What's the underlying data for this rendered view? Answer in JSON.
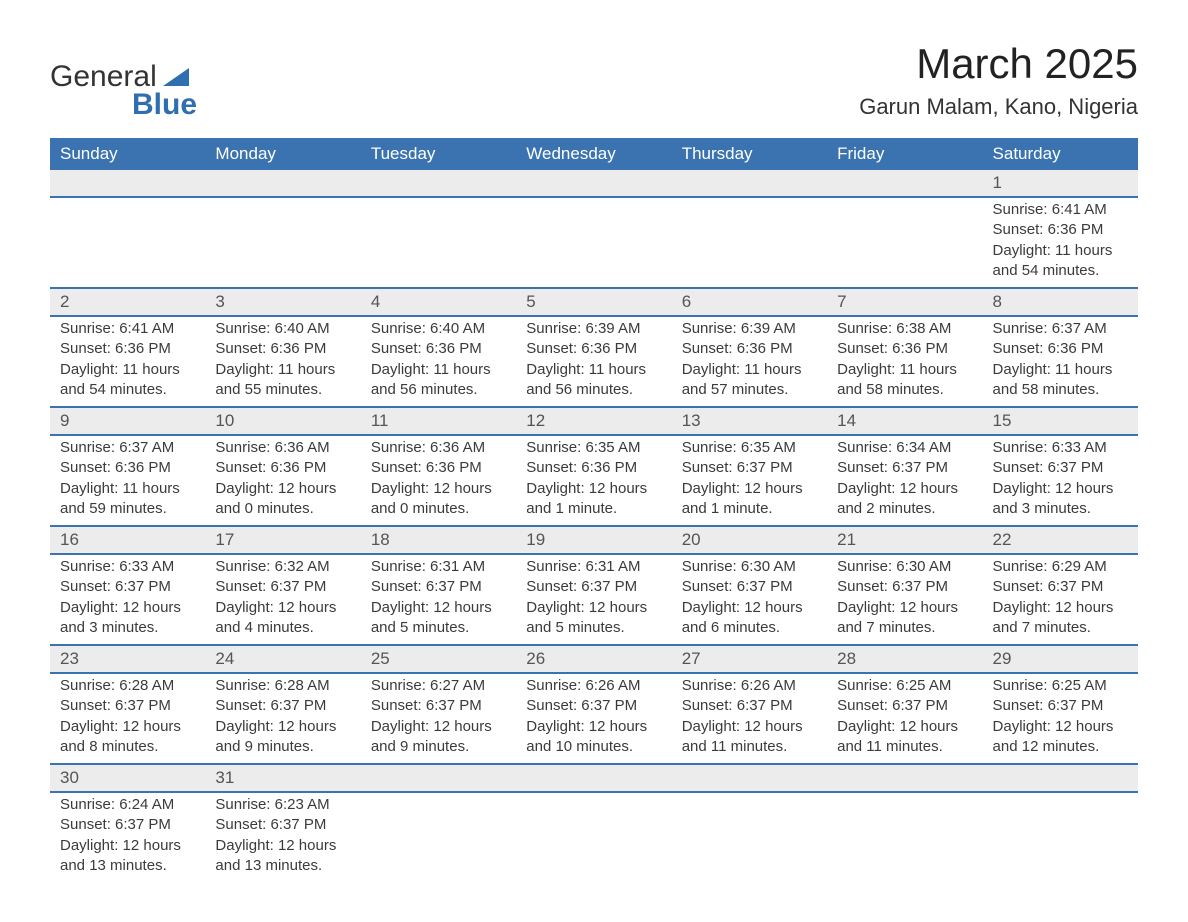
{
  "logo": {
    "text1": "General",
    "text2": "Blue"
  },
  "title": "March 2025",
  "location": "Garun Malam, Kano, Nigeria",
  "colors": {
    "header_bg": "#3a73af",
    "header_text": "#ffffff",
    "daynum_bg": "#ececec",
    "row_border": "#3a73af",
    "body_text": "#3b3b3b",
    "logo_blue": "#2f6faf"
  },
  "weekdays": [
    "Sunday",
    "Monday",
    "Tuesday",
    "Wednesday",
    "Thursday",
    "Friday",
    "Saturday"
  ],
  "weeks": [
    {
      "days": [
        null,
        null,
        null,
        null,
        null,
        null,
        {
          "n": "1",
          "sr": "Sunrise: 6:41 AM",
          "ss": "Sunset: 6:36 PM",
          "d1": "Daylight: 11 hours",
          "d2": "and 54 minutes."
        }
      ]
    },
    {
      "days": [
        {
          "n": "2",
          "sr": "Sunrise: 6:41 AM",
          "ss": "Sunset: 6:36 PM",
          "d1": "Daylight: 11 hours",
          "d2": "and 54 minutes."
        },
        {
          "n": "3",
          "sr": "Sunrise: 6:40 AM",
          "ss": "Sunset: 6:36 PM",
          "d1": "Daylight: 11 hours",
          "d2": "and 55 minutes."
        },
        {
          "n": "4",
          "sr": "Sunrise: 6:40 AM",
          "ss": "Sunset: 6:36 PM",
          "d1": "Daylight: 11 hours",
          "d2": "and 56 minutes."
        },
        {
          "n": "5",
          "sr": "Sunrise: 6:39 AM",
          "ss": "Sunset: 6:36 PM",
          "d1": "Daylight: 11 hours",
          "d2": "and 56 minutes."
        },
        {
          "n": "6",
          "sr": "Sunrise: 6:39 AM",
          "ss": "Sunset: 6:36 PM",
          "d1": "Daylight: 11 hours",
          "d2": "and 57 minutes."
        },
        {
          "n": "7",
          "sr": "Sunrise: 6:38 AM",
          "ss": "Sunset: 6:36 PM",
          "d1": "Daylight: 11 hours",
          "d2": "and 58 minutes."
        },
        {
          "n": "8",
          "sr": "Sunrise: 6:37 AM",
          "ss": "Sunset: 6:36 PM",
          "d1": "Daylight: 11 hours",
          "d2": "and 58 minutes."
        }
      ]
    },
    {
      "days": [
        {
          "n": "9",
          "sr": "Sunrise: 6:37 AM",
          "ss": "Sunset: 6:36 PM",
          "d1": "Daylight: 11 hours",
          "d2": "and 59 minutes."
        },
        {
          "n": "10",
          "sr": "Sunrise: 6:36 AM",
          "ss": "Sunset: 6:36 PM",
          "d1": "Daylight: 12 hours",
          "d2": "and 0 minutes."
        },
        {
          "n": "11",
          "sr": "Sunrise: 6:36 AM",
          "ss": "Sunset: 6:36 PM",
          "d1": "Daylight: 12 hours",
          "d2": "and 0 minutes."
        },
        {
          "n": "12",
          "sr": "Sunrise: 6:35 AM",
          "ss": "Sunset: 6:36 PM",
          "d1": "Daylight: 12 hours",
          "d2": "and 1 minute."
        },
        {
          "n": "13",
          "sr": "Sunrise: 6:35 AM",
          "ss": "Sunset: 6:37 PM",
          "d1": "Daylight: 12 hours",
          "d2": "and 1 minute."
        },
        {
          "n": "14",
          "sr": "Sunrise: 6:34 AM",
          "ss": "Sunset: 6:37 PM",
          "d1": "Daylight: 12 hours",
          "d2": "and 2 minutes."
        },
        {
          "n": "15",
          "sr": "Sunrise: 6:33 AM",
          "ss": "Sunset: 6:37 PM",
          "d1": "Daylight: 12 hours",
          "d2": "and 3 minutes."
        }
      ]
    },
    {
      "days": [
        {
          "n": "16",
          "sr": "Sunrise: 6:33 AM",
          "ss": "Sunset: 6:37 PM",
          "d1": "Daylight: 12 hours",
          "d2": "and 3 minutes."
        },
        {
          "n": "17",
          "sr": "Sunrise: 6:32 AM",
          "ss": "Sunset: 6:37 PM",
          "d1": "Daylight: 12 hours",
          "d2": "and 4 minutes."
        },
        {
          "n": "18",
          "sr": "Sunrise: 6:31 AM",
          "ss": "Sunset: 6:37 PM",
          "d1": "Daylight: 12 hours",
          "d2": "and 5 minutes."
        },
        {
          "n": "19",
          "sr": "Sunrise: 6:31 AM",
          "ss": "Sunset: 6:37 PM",
          "d1": "Daylight: 12 hours",
          "d2": "and 5 minutes."
        },
        {
          "n": "20",
          "sr": "Sunrise: 6:30 AM",
          "ss": "Sunset: 6:37 PM",
          "d1": "Daylight: 12 hours",
          "d2": "and 6 minutes."
        },
        {
          "n": "21",
          "sr": "Sunrise: 6:30 AM",
          "ss": "Sunset: 6:37 PM",
          "d1": "Daylight: 12 hours",
          "d2": "and 7 minutes."
        },
        {
          "n": "22",
          "sr": "Sunrise: 6:29 AM",
          "ss": "Sunset: 6:37 PM",
          "d1": "Daylight: 12 hours",
          "d2": "and 7 minutes."
        }
      ]
    },
    {
      "days": [
        {
          "n": "23",
          "sr": "Sunrise: 6:28 AM",
          "ss": "Sunset: 6:37 PM",
          "d1": "Daylight: 12 hours",
          "d2": "and 8 minutes."
        },
        {
          "n": "24",
          "sr": "Sunrise: 6:28 AM",
          "ss": "Sunset: 6:37 PM",
          "d1": "Daylight: 12 hours",
          "d2": "and 9 minutes."
        },
        {
          "n": "25",
          "sr": "Sunrise: 6:27 AM",
          "ss": "Sunset: 6:37 PM",
          "d1": "Daylight: 12 hours",
          "d2": "and 9 minutes."
        },
        {
          "n": "26",
          "sr": "Sunrise: 6:26 AM",
          "ss": "Sunset: 6:37 PM",
          "d1": "Daylight: 12 hours",
          "d2": "and 10 minutes."
        },
        {
          "n": "27",
          "sr": "Sunrise: 6:26 AM",
          "ss": "Sunset: 6:37 PM",
          "d1": "Daylight: 12 hours",
          "d2": "and 11 minutes."
        },
        {
          "n": "28",
          "sr": "Sunrise: 6:25 AM",
          "ss": "Sunset: 6:37 PM",
          "d1": "Daylight: 12 hours",
          "d2": "and 11 minutes."
        },
        {
          "n": "29",
          "sr": "Sunrise: 6:25 AM",
          "ss": "Sunset: 6:37 PM",
          "d1": "Daylight: 12 hours",
          "d2": "and 12 minutes."
        }
      ]
    },
    {
      "days": [
        {
          "n": "30",
          "sr": "Sunrise: 6:24 AM",
          "ss": "Sunset: 6:37 PM",
          "d1": "Daylight: 12 hours",
          "d2": "and 13 minutes."
        },
        {
          "n": "31",
          "sr": "Sunrise: 6:23 AM",
          "ss": "Sunset: 6:37 PM",
          "d1": "Daylight: 12 hours",
          "d2": "and 13 minutes."
        },
        null,
        null,
        null,
        null,
        null
      ]
    }
  ]
}
